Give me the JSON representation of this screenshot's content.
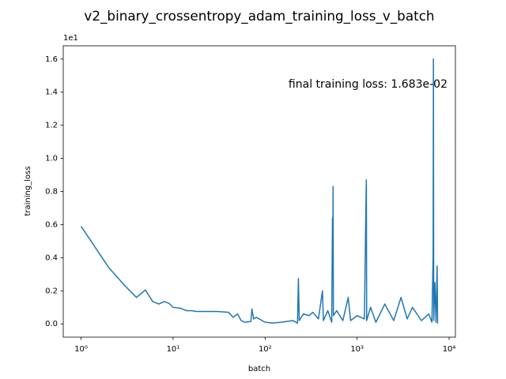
{
  "chart_data": {
    "type": "line",
    "title": "v2_binary_crossentropy_adam_training_loss_v_batch",
    "xlabel": "batch",
    "ylabel": "training_loss",
    "y_offset_label": "1e1",
    "annotation": "final training loss: 1.683e-02",
    "xscale": "log",
    "xlim": [
      0.64,
      11700
    ],
    "ylim": [
      -0.08,
      1.68
    ],
    "xticks": [
      {
        "value": 1,
        "label": "10⁰"
      },
      {
        "value": 10,
        "label": "10¹"
      },
      {
        "value": 100,
        "label": "10²"
      },
      {
        "value": 1000,
        "label": "10³"
      },
      {
        "value": 10000,
        "label": "10⁴"
      }
    ],
    "yticks": [
      {
        "value": 0,
        "label": "0.0"
      },
      0.2,
      0.4,
      0.6,
      0.8,
      {
        "value": 1,
        "label": "1.0"
      },
      1.2,
      1.4,
      1.6
    ],
    "series": [
      {
        "color": "#1f77b4",
        "x": [
          1,
          2,
          3,
          4,
          5,
          6,
          7,
          8,
          9,
          10,
          12,
          14,
          16,
          18,
          20,
          30,
          40,
          45,
          50,
          55,
          60,
          70,
          72,
          75,
          80,
          100,
          120,
          150,
          200,
          225,
          230,
          235,
          260,
          300,
          330,
          380,
          420,
          430,
          480,
          530,
          540,
          545,
          548,
          552,
          600,
          700,
          800,
          850,
          1000,
          1200,
          1250,
          1260,
          1270,
          1400,
          1600,
          2000,
          2500,
          3000,
          3500,
          4000,
          5000,
          6000,
          6500,
          6700,
          6750,
          6800,
          7000,
          7200,
          7400,
          7500
        ],
        "values": [
          0.59,
          0.34,
          0.23,
          0.16,
          0.205,
          0.135,
          0.12,
          0.135,
          0.125,
          0.1,
          0.095,
          0.08,
          0.08,
          0.075,
          0.075,
          0.075,
          0.07,
          0.04,
          0.06,
          0.02,
          0.01,
          0.015,
          0.09,
          0.03,
          0.04,
          0.01,
          0.005,
          0.01,
          0.02,
          0.005,
          0.275,
          0.02,
          0.06,
          0.05,
          0.07,
          0.03,
          0.2,
          0.02,
          0.08,
          0.01,
          0.64,
          0.42,
          0.83,
          0.05,
          0.08,
          0.02,
          0.16,
          0.02,
          0.05,
          0.03,
          0.76,
          0.87,
          0.02,
          0.1,
          0.01,
          0.12,
          0.02,
          0.16,
          0.03,
          0.1,
          0.02,
          0.06,
          0.01,
          0.42,
          1.6,
          0.02,
          0.25,
          0.01,
          0.35,
          0.0017
        ]
      }
    ]
  }
}
